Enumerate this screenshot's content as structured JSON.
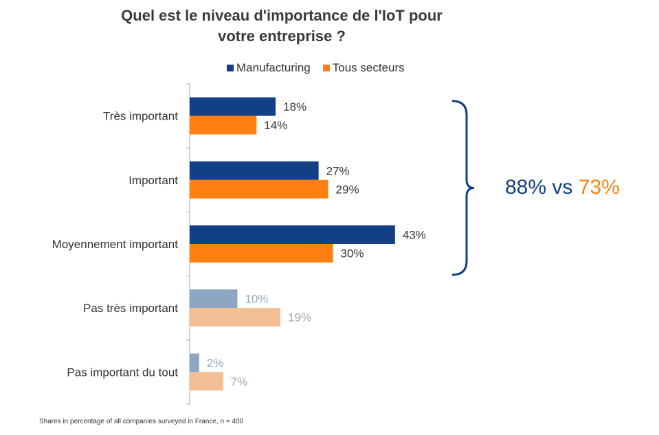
{
  "chart_data": {
    "type": "bar",
    "orientation": "horizontal",
    "title_lines": [
      "Quel est le niveau d'importance de l'IoT pour",
      "votre entreprise ?"
    ],
    "categories": [
      "Très important",
      "Important",
      "Moyennement important",
      "Pas très important",
      "Pas important du tout"
    ],
    "series": [
      {
        "name": "Manufacturing",
        "values": [
          18,
          27,
          43,
          10,
          2
        ],
        "labels": [
          "18%",
          "27%",
          "43%",
          "10%",
          "2%"
        ],
        "color": "#123f85",
        "faded_color": "#8ba7c3"
      },
      {
        "name": "Tous secteurs",
        "values": [
          14,
          29,
          30,
          19,
          7
        ],
        "labels": [
          "14%",
          "29%",
          "30%",
          "19%",
          "7%"
        ],
        "color": "#ff7f10",
        "faded_color": "#f3be94"
      }
    ],
    "highlighted_categories": [
      "Très important",
      "Important",
      "Moyennement important"
    ],
    "faded_label_color": "#9aa8b8",
    "xlim": [
      0,
      100
    ],
    "grid": false,
    "legend_position": "top",
    "annotation": {
      "value_a": "88%",
      "connector": "vs",
      "value_b": "73%",
      "color_a": "#123f85",
      "color_b": "#ff7f10"
    },
    "footnote": "Shares in percentage of all companies surveyed in France, n = 400"
  }
}
